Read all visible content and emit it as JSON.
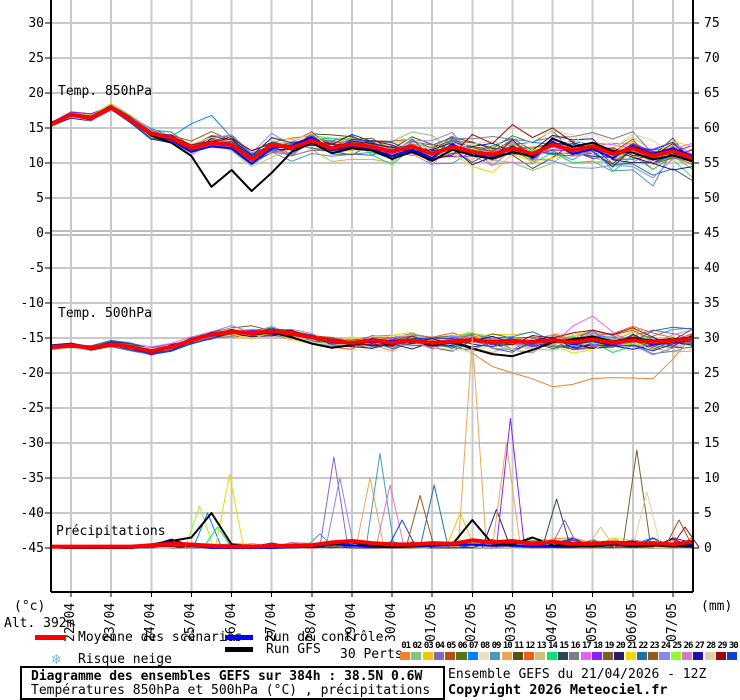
{
  "axes": {
    "left_unit": "(°c)",
    "right_unit": "(mm)",
    "alt_label": "Alt. 392m",
    "left_ticks": [
      30,
      25,
      20,
      15,
      10,
      5,
      0,
      -5,
      -10,
      -15,
      -20,
      -25,
      -30,
      -35,
      -40,
      -45
    ],
    "right_ticks": [
      75,
      70,
      65,
      60,
      55,
      50,
      45,
      40,
      35,
      30,
      25,
      20,
      15,
      10,
      5,
      0
    ],
    "x_dates": [
      "22/04",
      "23/04",
      "24/04",
      "25/04",
      "26/04",
      "27/04",
      "28/04",
      "29/04",
      "30/04",
      "01/05",
      "02/05",
      "03/05",
      "04/05",
      "05/05",
      "06/05",
      "07/05"
    ]
  },
  "legend": {
    "mean_label": "Moyenne des scénarios",
    "control_label": "Run de contrôle",
    "gfs_label": "Run GFS",
    "perts_label": "30 Perts.",
    "snow_label": "Risque neige",
    "snow_icon": "❄",
    "mean_color": "#ff0000",
    "control_color": "#0000ff",
    "gfs_color": "#000000",
    "pert_numbers": [
      "01",
      "02",
      "03",
      "04",
      "05",
      "06",
      "07",
      "08",
      "09",
      "10",
      "11",
      "12",
      "13",
      "14",
      "15",
      "16",
      "17",
      "18",
      "19",
      "20",
      "21",
      "22",
      "23",
      "24",
      "25",
      "26",
      "27",
      "28",
      "29",
      "30"
    ],
    "pert_colors": [
      "#f08030",
      "#80c878",
      "#f0c800",
      "#9060c0",
      "#b85010",
      "#507818",
      "#0080ff",
      "#e8e0c0",
      "#4898b8",
      "#e8a858",
      "#585018",
      "#ff5818",
      "#d0c078",
      "#10e070",
      "#284858",
      "#788088",
      "#e860f8",
      "#8820f8",
      "#786028",
      "#301870",
      "#f0d800",
      "#2070a8",
      "#985818",
      "#8888e8",
      "#98f830",
      "#d878c8",
      "#2010a8",
      "#e0d0a8",
      "#980808",
      "#1040c8"
    ]
  },
  "title_box": {
    "line1": "Diagramme des ensembles GEFS sur 384h : 38.5N 0.6W",
    "line2": "Températures 850hPa et 500hPa (°C) , précipitations (mm)"
  },
  "credits": {
    "line1": "Ensemble GEFS du 21/04/2026 - 12Z",
    "line2": "Copyright 2026 Meteociel.fr"
  },
  "chart_data": [
    {
      "type": "line",
      "title": "Temp. 850hPa",
      "ylabel": "°C",
      "x_start": "21/04 12Z",
      "x_step_hours": 12,
      "n_points": 33,
      "ylim": [
        -45,
        30
      ],
      "series": [
        {
          "name": "Moyenne des scénarios",
          "color": "#ff0000",
          "width": 4,
          "values": [
            15.5,
            16.9,
            16.4,
            17.9,
            16.1,
            14.2,
            13.6,
            12.1,
            12.9,
            12.6,
            10.5,
            12.6,
            12.2,
            13.2,
            12.1,
            12.7,
            12.3,
            11.6,
            12.4,
            11.3,
            12.3,
            11.6,
            11.2,
            12.1,
            11.3,
            12.6,
            11.8,
            12.4,
            11.3,
            12.1,
            11.0,
            11.7,
            10.7
          ]
        },
        {
          "name": "Run de contrôle",
          "color": "#0000ff",
          "width": 2,
          "values": [
            15.5,
            16.8,
            16.2,
            17.7,
            15.9,
            14.0,
            13.3,
            11.6,
            12.4,
            12.1,
            9.9,
            12.1,
            12.5,
            13.7,
            11.8,
            12.3,
            11.9,
            11.0,
            11.9,
            10.7,
            12.7,
            11.1,
            10.7,
            12.4,
            10.8,
            13.0,
            11.3,
            12.0,
            10.7,
            12.5,
            11.3,
            12.1,
            11.0
          ]
        },
        {
          "name": "Run GFS",
          "color": "#000000",
          "width": 2,
          "values": [
            15.5,
            17.0,
            16.6,
            18.1,
            16.3,
            13.9,
            12.9,
            11.0,
            6.6,
            9.0,
            6.0,
            8.6,
            11.6,
            12.9,
            11.4,
            12.1,
            11.8,
            10.6,
            11.6,
            10.3,
            11.9,
            11.1,
            10.6,
            11.6,
            10.9,
            13.5,
            12.3,
            12.9,
            11.7,
            11.5,
            10.5,
            11.1,
            10.2
          ]
        }
      ],
      "ensemble_spread": [
        0.4,
        0.6,
        0.7,
        0.8,
        1.0,
        1.4,
        1.7,
        2.0,
        2.3,
        2.5,
        2.6,
        2.7,
        2.9,
        3.0,
        3.0,
        3.1,
        3.1,
        3.3,
        3.4,
        3.5,
        3.5,
        3.6,
        3.8,
        3.8,
        4.0,
        4.0,
        4.1,
        4.2,
        4.2,
        4.4,
        4.5,
        4.5,
        4.5
      ],
      "outliers": [
        {
          "pert": 7,
          "from": 6,
          "to": 9,
          "offset": 4.0
        },
        {
          "pert": 29,
          "from": 20,
          "to": 26,
          "offset": 3.2
        },
        {
          "pert": 9,
          "from": 27,
          "to": 31,
          "offset": -4.5
        }
      ]
    },
    {
      "type": "line",
      "title": "Temp. 500hPa",
      "ylabel": "°C",
      "x_start": "21/04 12Z",
      "x_step_hours": 12,
      "n_points": 33,
      "ylim": [
        -45,
        30
      ],
      "series": [
        {
          "name": "Moyenne des scénarios",
          "color": "#ff0000",
          "width": 4,
          "values": [
            -16.3,
            -16.1,
            -16.4,
            -15.9,
            -16.3,
            -16.9,
            -16.3,
            -15.3,
            -14.5,
            -14.1,
            -14.3,
            -14.0,
            -14.4,
            -14.9,
            -15.4,
            -15.7,
            -15.3,
            -15.7,
            -15.4,
            -15.7,
            -15.5,
            -15.3,
            -15.6,
            -15.4,
            -15.6,
            -15.3,
            -15.6,
            -15.2,
            -15.7,
            -15.3,
            -15.6,
            -15.4,
            -15.1
          ]
        },
        {
          "name": "Run de contrôle",
          "color": "#0000ff",
          "width": 2,
          "values": [
            -16.3,
            -16.2,
            -16.5,
            -15.7,
            -16.4,
            -17.0,
            -16.1,
            -15.5,
            -14.3,
            -14.3,
            -14.1,
            -14.2,
            -14.6,
            -14.7,
            -15.6,
            -15.5,
            -15.6,
            -15.4,
            -15.7,
            -15.5,
            -15.8,
            -15.1,
            -15.8,
            -15.2,
            -15.8,
            -15.1,
            -15.9,
            -15.4,
            -16.0,
            -15.1,
            -15.9,
            -15.6,
            -15.3
          ]
        },
        {
          "name": "Run GFS",
          "color": "#000000",
          "width": 2,
          "values": [
            -16.3,
            -16.0,
            -16.5,
            -16.0,
            -16.2,
            -17.1,
            -16.4,
            -15.1,
            -14.6,
            -13.9,
            -14.5,
            -14.2,
            -14.9,
            -15.8,
            -16.4,
            -16.0,
            -15.4,
            -16.0,
            -15.2,
            -16.1,
            -15.6,
            -16.5,
            -17.3,
            -17.6,
            -16.7,
            -15.6,
            -15.2,
            -14.8,
            -15.5,
            -15.0,
            -15.4,
            -15.2,
            -14.9
          ]
        }
      ],
      "ensemble_spread": [
        0.3,
        0.4,
        0.5,
        0.5,
        0.6,
        0.7,
        0.8,
        1.0,
        1.0,
        1.1,
        1.2,
        1.3,
        1.5,
        1.5,
        1.7,
        1.8,
        2.0,
        2.0,
        2.2,
        2.2,
        2.4,
        2.5,
        2.5,
        2.7,
        2.8,
        2.8,
        3.0,
        3.0,
        3.0,
        3.1,
        3.2,
        3.2,
        3.2
      ],
      "outliers": [
        {
          "pert": 1,
          "from": 19,
          "to": 32,
          "offset": -7.0
        },
        {
          "pert": 17,
          "from": 25,
          "to": 29,
          "offset": 3.8
        }
      ]
    },
    {
      "type": "line",
      "title": "Précipitations",
      "ylabel": "mm",
      "x_start": "21/04 12Z",
      "x_step_hours": 12,
      "n_points": 33,
      "ylim": [
        0,
        80
      ],
      "series": [
        {
          "name": "Moyenne des scénarios",
          "color": "#ff0000",
          "width": 4,
          "values": [
            0.2,
            0.2,
            0.2,
            0.2,
            0.2,
            0.4,
            0.6,
            0.5,
            0.3,
            0.2,
            0.2,
            0.3,
            0.3,
            0.4,
            0.8,
            1.0,
            0.7,
            0.5,
            0.5,
            0.7,
            0.6,
            1.1,
            0.8,
            1.0,
            0.6,
            0.9,
            0.6,
            0.6,
            0.8,
            0.6,
            0.7,
            0.5,
            0.9
          ]
        },
        {
          "name": "Run de contrôle",
          "color": "#0000ff",
          "width": 2,
          "values": [
            0.1,
            0.0,
            0.0,
            0.0,
            0.0,
            0.3,
            1.2,
            0.3,
            0.0,
            0.0,
            0.0,
            0.0,
            0.1,
            0.2,
            0.5,
            0.4,
            0.2,
            0.1,
            0.2,
            0.3,
            0.4,
            0.5,
            0.3,
            0.4,
            0.2,
            0.3,
            0.2,
            0.3,
            0.8,
            0.9,
            0.4,
            0.3,
            0.5
          ]
        },
        {
          "name": "Run GFS",
          "color": "#000000",
          "width": 2,
          "values": [
            0.1,
            0.0,
            0.0,
            0.0,
            0.0,
            0.5,
            1.0,
            1.5,
            5.0,
            0.5,
            0.2,
            0.2,
            0.3,
            0.2,
            0.5,
            0.8,
            0.3,
            0.2,
            0.3,
            0.4,
            0.5,
            4.0,
            0.6,
            0.5,
            1.5,
            0.4,
            0.3,
            0.2,
            0.5,
            0.3,
            0.4,
            0.2,
            0.3
          ]
        }
      ],
      "member_spikes": [
        {
          "pert": 25,
          "t": 7.4,
          "mm": 6.0
        },
        {
          "pert": 7,
          "t": 7.8,
          "mm": 5.0
        },
        {
          "pert": 14,
          "t": 8.3,
          "mm": 3.0
        },
        {
          "pert": 21,
          "t": 8.9,
          "mm": 10.5
        },
        {
          "pert": 9,
          "t": 13.4,
          "mm": 2.0
        },
        {
          "pert": 4,
          "t": 14.1,
          "mm": 13.0
        },
        {
          "pert": 24,
          "t": 14.4,
          "mm": 10.0
        },
        {
          "pert": 10,
          "t": 15.9,
          "mm": 10.0
        },
        {
          "pert": 9,
          "t": 16.4,
          "mm": 13.5
        },
        {
          "pert": 26,
          "t": 16.9,
          "mm": 9.0
        },
        {
          "pert": 30,
          "t": 17.5,
          "mm": 4.0
        },
        {
          "pert": 23,
          "t": 18.4,
          "mm": 7.5
        },
        {
          "pert": 22,
          "t": 19.1,
          "mm": 9.0
        },
        {
          "pert": 3,
          "t": 20.4,
          "mm": 5.0
        },
        {
          "pert": 10,
          "t": 21.0,
          "mm": 30.0
        },
        {
          "pert": 20,
          "t": 22.2,
          "mm": 5.5
        },
        {
          "pert": 10,
          "t": 22.7,
          "mm": 15.0
        },
        {
          "pert": 18,
          "t": 22.9,
          "mm": 18.5
        },
        {
          "pert": 15,
          "t": 25.2,
          "mm": 7.0
        },
        {
          "pert": 4,
          "t": 25.6,
          "mm": 4.0
        },
        {
          "pert": 13,
          "t": 27.4,
          "mm": 3.0
        },
        {
          "pert": 19,
          "t": 29.2,
          "mm": 14.0
        },
        {
          "pert": 28,
          "t": 29.7,
          "mm": 8.0
        },
        {
          "pert": 23,
          "t": 31.3,
          "mm": 4.0
        },
        {
          "pert": 29,
          "t": 31.6,
          "mm": 3.0
        }
      ]
    }
  ]
}
